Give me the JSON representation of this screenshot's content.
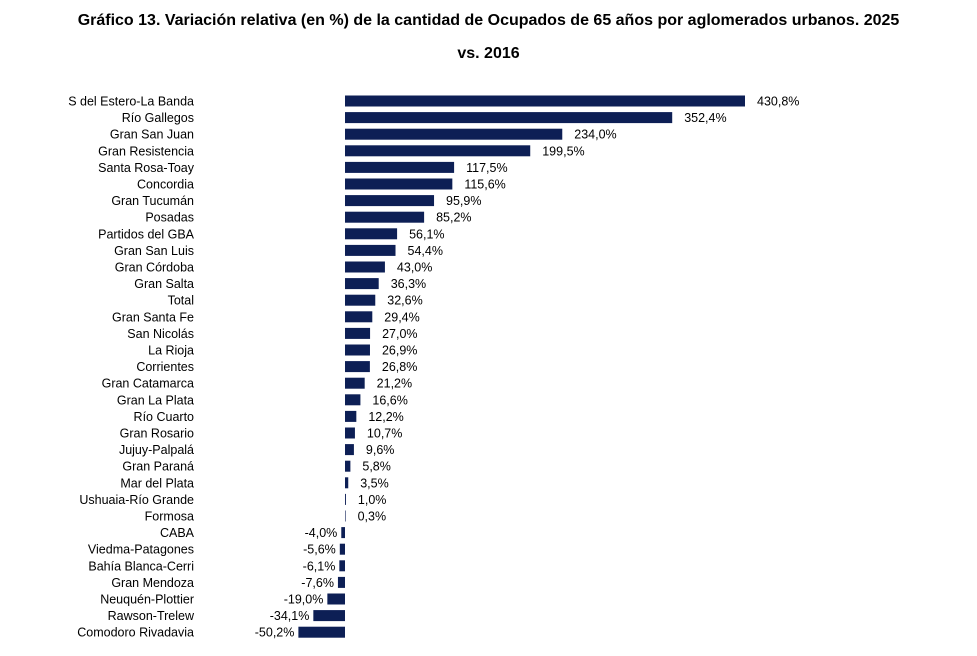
{
  "chart_data": {
    "type": "bar",
    "orientation": "horizontal",
    "title_line1": "Gráfico 13. Variación relativa (en %) de la cantidad de Ocupados de 65 años por aglomerados urbanos. 2025",
    "title_line2": "vs. 2016",
    "xlabel": "",
    "ylabel": "",
    "xlim": [
      -50.2,
      430.8
    ],
    "grid": false,
    "legend": "none",
    "bar_color": "#0d1f55",
    "categories": [
      "S del Estero-La Banda",
      "Río Gallegos",
      "Gran San Juan",
      "Gran Resistencia",
      "Santa Rosa-Toay",
      "Concordia",
      "Gran Tucumán",
      "Posadas",
      "Partidos del GBA",
      "Gran San Luis",
      "Gran Córdoba",
      "Gran Salta",
      "Total",
      "Gran Santa Fe",
      "San Nicolás",
      "La Rioja",
      "Corrientes",
      "Gran Catamarca",
      "Gran La Plata",
      "Río Cuarto",
      "Gran Rosario",
      "Jujuy-Palpalá",
      "Gran Paraná",
      "Mar del Plata",
      "Ushuaia-Río Grande",
      "Formosa",
      "CABA",
      "Viedma-Patagones",
      "Bahía Blanca-Cerri",
      "Gran Mendoza",
      "Neuquén-Plottier",
      "Rawson-Trelew",
      "Comodoro Rivadavia"
    ],
    "values": [
      430.8,
      352.4,
      234.0,
      199.5,
      117.5,
      115.6,
      95.9,
      85.2,
      56.1,
      54.4,
      43.0,
      36.3,
      32.6,
      29.4,
      27.0,
      26.9,
      26.8,
      21.2,
      16.6,
      12.2,
      10.7,
      9.6,
      5.8,
      3.5,
      1.0,
      0.3,
      -4.0,
      -5.6,
      -6.1,
      -7.6,
      -19.0,
      -34.1,
      -50.2
    ],
    "value_labels": [
      "430,8%",
      "352,4%",
      "234,0%",
      "199,5%",
      "117,5%",
      "115,6%",
      "95,9%",
      "85,2%",
      "56,1%",
      "54,4%",
      "43,0%",
      "36,3%",
      "32,6%",
      "29,4%",
      "27,0%",
      "26,9%",
      "26,8%",
      "21,2%",
      "16,6%",
      "12,2%",
      "10,7%",
      "9,6%",
      "5,8%",
      "3,5%",
      "1,0%",
      "0,3%",
      "-4,0%",
      "-5,6%",
      "-6,1%",
      "-7,6%",
      "-19,0%",
      "-34,1%",
      "-50,2%"
    ]
  }
}
